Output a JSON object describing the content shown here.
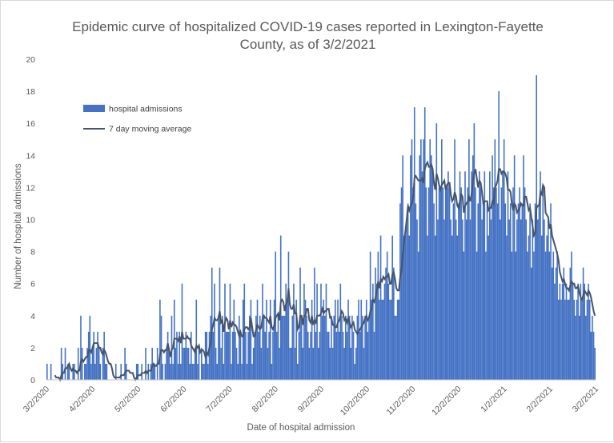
{
  "chart_data": {
    "type": "bar",
    "title_line1": "Epidemic curve of hospitalized COVID-19 cases reported in Lexington-Fayette",
    "title_line2": "County, as of 3/2/2021",
    "xlabel": "Date of hospital admission",
    "ylabel": "Number of hospital admissions",
    "ylim": [
      0,
      20
    ],
    "yticks": [
      0,
      2,
      4,
      6,
      8,
      10,
      12,
      14,
      16,
      18,
      20
    ],
    "grid": false,
    "legend_position": "upper-left",
    "x_start": "3/2/2020",
    "x_end": "3/2/2021",
    "x_tick_labels": [
      "3/2/2020",
      "4/2/2020",
      "5/2/2020",
      "6/2/2020",
      "7/2/2020",
      "8/2/2020",
      "9/2/2020",
      "10/2/2020",
      "11/2/2020",
      "12/2/2020",
      "1/2/2021",
      "2/2/2021",
      "3/2/2021"
    ],
    "colors": {
      "bars": "#4472c4",
      "line": "#44546a",
      "axis": "#bfbfbf",
      "text": "#595959"
    },
    "series": [
      {
        "name": "hospital admissions",
        "type": "bar",
        "monthly_values": [
          [
            1,
            0,
            0,
            1,
            0,
            0,
            0,
            0,
            0,
            0,
            0,
            2,
            1,
            0,
            2,
            0,
            1,
            1,
            0,
            0,
            1,
            1,
            0,
            0,
            2,
            0,
            4,
            2,
            0,
            1,
            1
          ],
          [
            2,
            3,
            4,
            1,
            2,
            3,
            1,
            2,
            3,
            2,
            1,
            0,
            2,
            3,
            1,
            1,
            0,
            0,
            0,
            0,
            0,
            0,
            1,
            0,
            0,
            0,
            1,
            0,
            0,
            2
          ],
          [
            1,
            0,
            0,
            0,
            0,
            0,
            0,
            0,
            1,
            1,
            0,
            0,
            1,
            0,
            0,
            2,
            0,
            1,
            0,
            1,
            2,
            1,
            1,
            0,
            2,
            0,
            5,
            4,
            1,
            0,
            1
          ],
          [
            2,
            3,
            2,
            1,
            4,
            1,
            5,
            2,
            3,
            1,
            3,
            1,
            6,
            2,
            2,
            3,
            2,
            2,
            1,
            3,
            1,
            1,
            2,
            5,
            1,
            2,
            0,
            2,
            1,
            1
          ],
          [
            3,
            3,
            1,
            3,
            4,
            7,
            3,
            6,
            2,
            1,
            4,
            7,
            2,
            4,
            1,
            6,
            3,
            3,
            3,
            6,
            1,
            3,
            5,
            3,
            2,
            1,
            4,
            3,
            1,
            5,
            6
          ],
          [
            3,
            1,
            3,
            4,
            5,
            1,
            2,
            3,
            4,
            5,
            3,
            4,
            2,
            6,
            4,
            3,
            5,
            2,
            3,
            5,
            1,
            3,
            5,
            8,
            3,
            4,
            2,
            9,
            4,
            4,
            4
          ],
          [
            6,
            5,
            8,
            2,
            2,
            4,
            6,
            2,
            5,
            1,
            3,
            7,
            4,
            2,
            6,
            5,
            4,
            3,
            2,
            3,
            5,
            2,
            7,
            3,
            6,
            2,
            3,
            6,
            4,
            5
          ],
          [
            4,
            6,
            3,
            3,
            2,
            4,
            2,
            4,
            5,
            3,
            5,
            3,
            6,
            4,
            3,
            2,
            4,
            3,
            5,
            4,
            2,
            4,
            3,
            1,
            2,
            4,
            5,
            3,
            5,
            4,
            2
          ],
          [
            4,
            5,
            3,
            4,
            8,
            5,
            6,
            3,
            7,
            6,
            8,
            5,
            9,
            5,
            5,
            6,
            7,
            8,
            6,
            5,
            5,
            9,
            7,
            4,
            4,
            5,
            5,
            11,
            12,
            14,
            9,
            9
          ],
          [
            10,
            11,
            9,
            14,
            15,
            12,
            17,
            11,
            10,
            8,
            14,
            15,
            13,
            15,
            17,
            12,
            9,
            12,
            15,
            14,
            13,
            11,
            9,
            16,
            10,
            12,
            12,
            15,
            12,
            10
          ],
          [
            12,
            12,
            13,
            12,
            10,
            9,
            11,
            15,
            10,
            9,
            11,
            13,
            12,
            10,
            8,
            13,
            10,
            12,
            15,
            10,
            13,
            14,
            16,
            12,
            8,
            11,
            13,
            12,
            10,
            11,
            13
          ],
          [
            8,
            11,
            9,
            13,
            10,
            14,
            12,
            15,
            12,
            11,
            18,
            10,
            12,
            13,
            15,
            11,
            9,
            13,
            10,
            11,
            8,
            12,
            14,
            8,
            10,
            11,
            12,
            10,
            11,
            14,
            12
          ],
          [
            10,
            8,
            9,
            11,
            7,
            10,
            8,
            11,
            19,
            10,
            11,
            13,
            9,
            12,
            10,
            8,
            9,
            10,
            8,
            11,
            7,
            8,
            6,
            7,
            8,
            5,
            6,
            5,
            6,
            7,
            5
          ],
          [
            6,
            5,
            5,
            7,
            8,
            6,
            5,
            4,
            5,
            6,
            4,
            6,
            5,
            7,
            6,
            4,
            5,
            6,
            5,
            3,
            4,
            3,
            2
          ]
        ]
      },
      {
        "name": "7 day moving average",
        "type": "line"
      }
    ]
  }
}
